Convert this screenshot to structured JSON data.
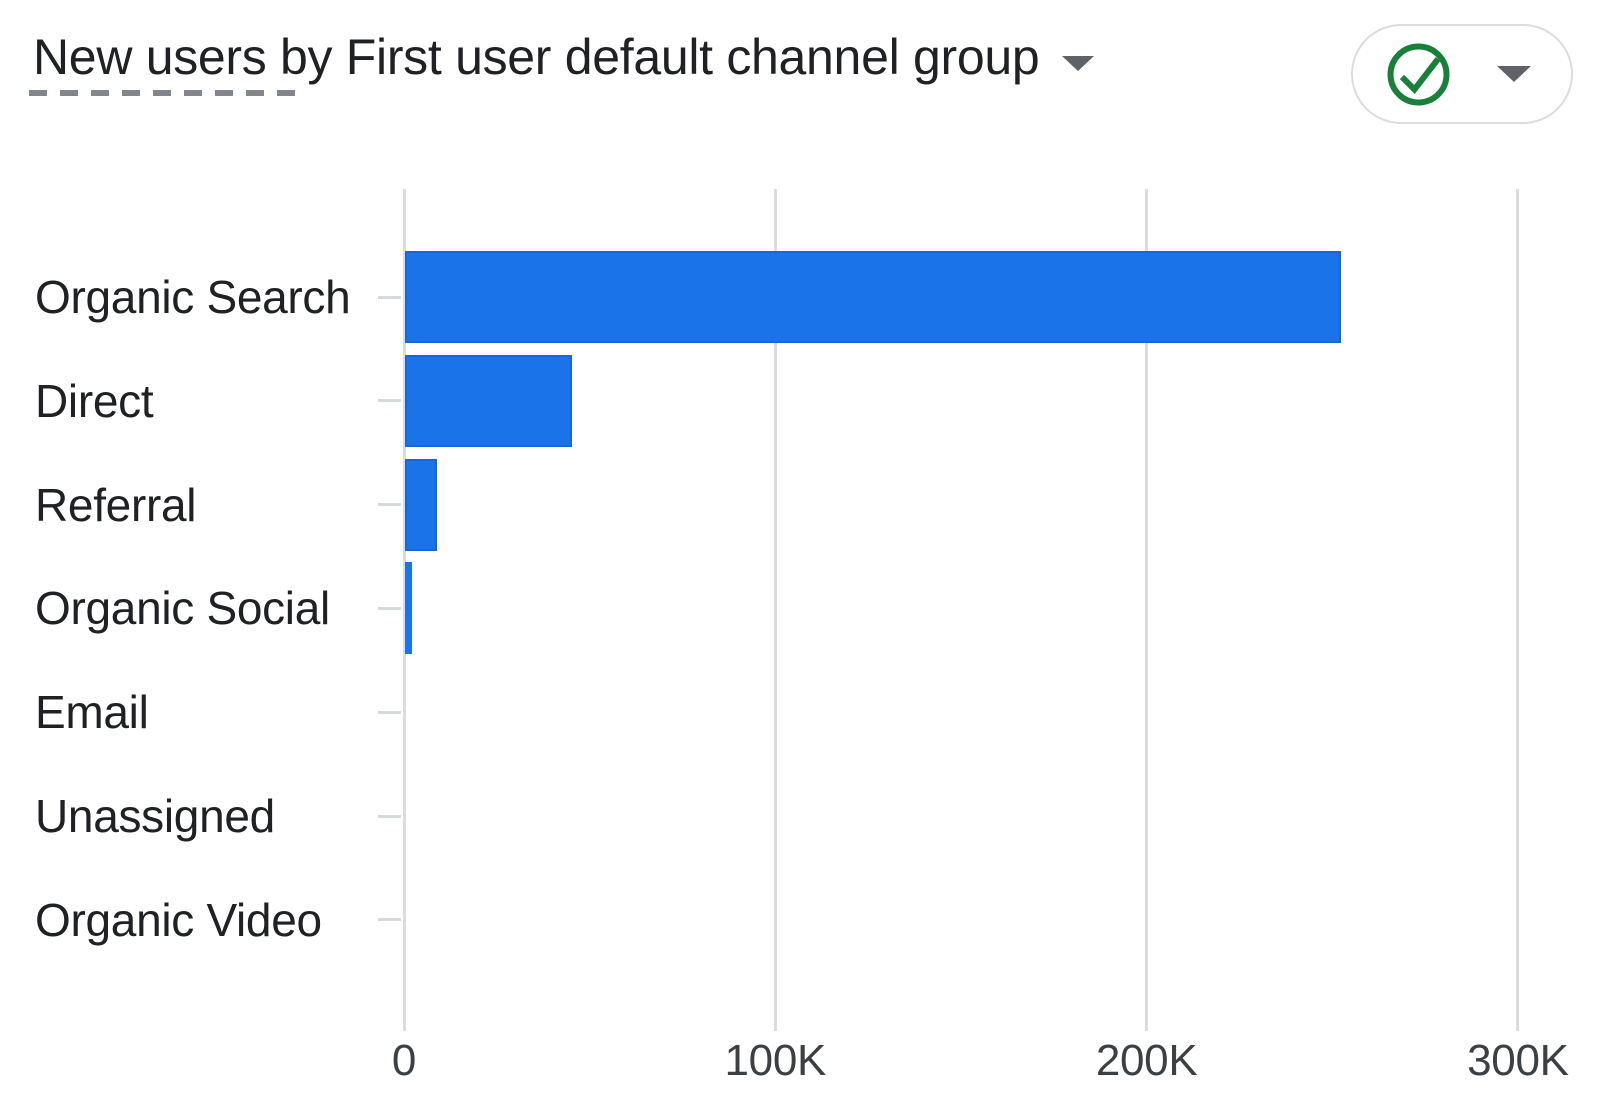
{
  "header": {
    "title_metric": "New users",
    "title_dimension": "by First user default channel group",
    "title_caret_icon": "caret-down",
    "quality_button": {
      "status_icon": "check-circle",
      "status_color": "#188038",
      "caret_icon": "caret-down",
      "caret_color": "#5f6368"
    }
  },
  "colors": {
    "bar": "#1a73e8",
    "bar_border": "#145fc7",
    "gridline": "#dadce0",
    "axis_tick_label": "#3c4043",
    "category_label": "#202124",
    "title": "#202124",
    "underline": "#80868b",
    "caret": "#5f6368",
    "pill_border": "#dadce0",
    "background": "#ffffff"
  },
  "chart_data": {
    "type": "bar",
    "orientation": "horizontal",
    "title": "New users by First user default channel group",
    "xlabel": "",
    "ylabel": "First user default channel group",
    "categories": [
      "Organic Search",
      "Direct",
      "Referral",
      "Organic Social",
      "Email",
      "Unassigned",
      "Organic Video"
    ],
    "values": [
      252000,
      45000,
      8600,
      1900,
      0,
      0,
      0
    ],
    "x_tick_labels": [
      "0",
      "100K",
      "200K",
      "300K"
    ],
    "x_tick_values": [
      0,
      100000,
      200000,
      300000
    ],
    "xlim": [
      0,
      312000
    ],
    "grid": "vertical-only",
    "legend": "none",
    "bar_color": "#1a73e8"
  }
}
